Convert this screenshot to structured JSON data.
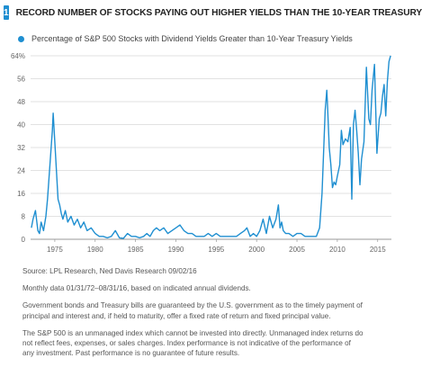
{
  "header": {
    "badge": "1",
    "title": "RECORD NUMBER OF STOCKS PAYING OUT HIGHER YIELDS THAN THE 10-YEAR TREASURY"
  },
  "chart_data": {
    "type": "line",
    "title": "RECORD NUMBER OF STOCKS PAYING OUT HIGHER YIELDS THAN THE 10-YEAR TREASURY",
    "legend": "Percentage of S&P 500 Stocks with Dividend Yields Greater than 10-Year Treasury Yields",
    "legend_position": "top-left",
    "grid": true,
    "y_ticks": [
      0,
      8,
      16,
      24,
      32,
      40,
      48,
      56,
      64
    ],
    "y_tick_labels": [
      "0",
      "8",
      "16",
      "24",
      "32",
      "40",
      "48",
      "56",
      "64%"
    ],
    "x_ticks": [
      1975,
      1980,
      1985,
      1990,
      1995,
      2000,
      2005,
      2010,
      2015
    ],
    "x_tick_labels": [
      "1975",
      "1980",
      "1985",
      "1990",
      "1995",
      "2000",
      "2005",
      "2010",
      "2015"
    ],
    "ylim": [
      0,
      64
    ],
    "xlim": [
      1972.0,
      2016.7
    ],
    "line_color": "#1f8fd1",
    "series": [
      {
        "name": "Percentage of S&P 500 Stocks with Dividend Yields Greater than 10-Year Treasury Yields",
        "x": [
          1972.1,
          1972.3,
          1972.6,
          1972.9,
          1973.1,
          1973.3,
          1973.6,
          1973.9,
          1974.1,
          1974.3,
          1974.5,
          1974.7,
          1974.8,
          1975.0,
          1975.2,
          1975.4,
          1975.6,
          1975.8,
          1976.0,
          1976.3,
          1976.6,
          1977.0,
          1977.4,
          1977.8,
          1978.2,
          1978.6,
          1979.0,
          1979.5,
          1980.0,
          1980.5,
          1981.0,
          1981.5,
          1982.0,
          1982.5,
          1983.0,
          1983.5,
          1984.0,
          1984.5,
          1985.0,
          1985.5,
          1986.0,
          1986.4,
          1986.8,
          1987.2,
          1987.6,
          1988.0,
          1988.5,
          1989.0,
          1989.5,
          1990.0,
          1990.5,
          1991.0,
          1991.5,
          1992.0,
          1992.5,
          1993.0,
          1993.5,
          1994.0,
          1994.5,
          1995.0,
          1995.5,
          1996.0,
          1996.5,
          1997.0,
          1997.5,
          1998.0,
          1998.5,
          1998.8,
          1999.2,
          1999.6,
          2000.0,
          2000.4,
          2000.8,
          2001.2,
          2001.6,
          2002.0,
          2002.4,
          2002.7,
          2002.9,
          2003.1,
          2003.3,
          2003.6,
          2004.0,
          2004.5,
          2005.0,
          2005.5,
          2006.0,
          2006.5,
          2007.0,
          2007.4,
          2007.8,
          2008.1,
          2008.3,
          2008.5,
          2008.7,
          2008.8,
          2009.0,
          2009.2,
          2009.4,
          2009.6,
          2009.8,
          2010.0,
          2010.3,
          2010.5,
          2010.7,
          2011.0,
          2011.3,
          2011.6,
          2011.8,
          2012.0,
          2012.2,
          2012.4,
          2012.6,
          2012.8,
          2013.0,
          2013.3,
          2013.6,
          2013.9,
          2014.1,
          2014.3,
          2014.6,
          2014.9,
          2015.2,
          2015.4,
          2015.6,
          2015.8,
          2016.0,
          2016.2,
          2016.4,
          2016.6
        ],
        "values": [
          4,
          7,
          10,
          3,
          2,
          6,
          3,
          8,
          14,
          22,
          30,
          38,
          44,
          34,
          24,
          14,
          12,
          9,
          7,
          10,
          6,
          8,
          5,
          7,
          4,
          6,
          3,
          4,
          2,
          1,
          1,
          0.5,
          1,
          3,
          0.5,
          0.3,
          2,
          1,
          1,
          0.5,
          1,
          2,
          1,
          3,
          4,
          3,
          4,
          2,
          3,
          4,
          5,
          3,
          2,
          2,
          1,
          1,
          1,
          2,
          1,
          2,
          1,
          1,
          1,
          1,
          1,
          2,
          3,
          4,
          1,
          2,
          1,
          3,
          7,
          2,
          8,
          4,
          7,
          12,
          4,
          6,
          3,
          2,
          2,
          1,
          2,
          2,
          1,
          1,
          1,
          1,
          4,
          16,
          30,
          45,
          52,
          46,
          32,
          26,
          18,
          20,
          19,
          22,
          26,
          38,
          33,
          35,
          34,
          39,
          14,
          40,
          45,
          38,
          30,
          19,
          28,
          34,
          60,
          42,
          40,
          52,
          61,
          30,
          42,
          44,
          50,
          54,
          43,
          55,
          62,
          64
        ]
      }
    ]
  },
  "notes": {
    "source": "Source: LPL Research, Ned Davis Research  09/02/16",
    "monthly": "Monthly data 01/31/72–08/31/16, based on indicated annual dividends.",
    "gov_bonds": "Government bonds and Treasury bills are guaranteed by the U.S. government as to the timely payment of\nprincipal and interest and, if held to maturity, offer a fixed rate of return and fixed principal value.",
    "sp500": "The S&P 500 is an unmanaged index which cannot be invested into directly. Unmanaged index returns do\nnot reflect fees, expenses, or sales charges. Index performance is not indicative of the performance of\nany investment. Past performance is no guarantee of future results."
  }
}
